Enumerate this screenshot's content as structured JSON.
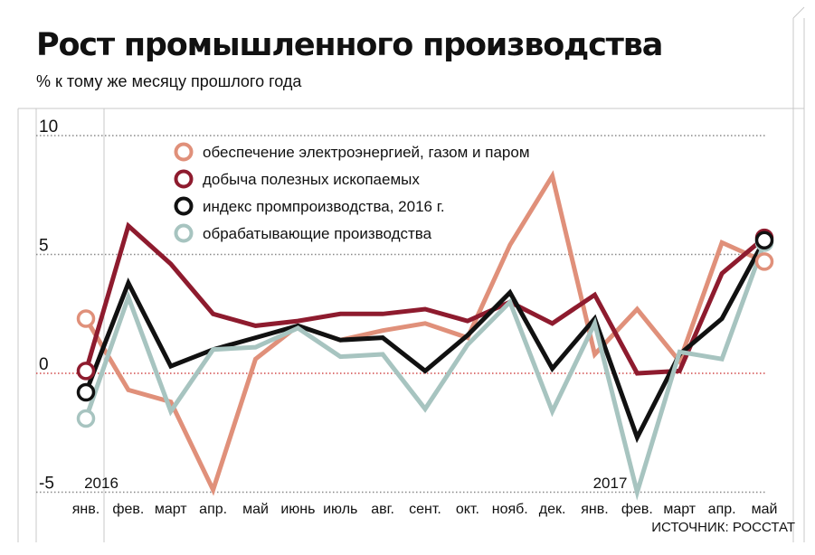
{
  "chart_data": {
    "type": "line",
    "title": "Рост промышленного производства",
    "subtitle": "% к тому же месяцу прошлого года",
    "source": "ИСТОЧНИК: РОССТАТ",
    "categories": [
      "янв.",
      "фев.",
      "март",
      "апр.",
      "май",
      "июнь",
      "июль",
      "авг.",
      "сент.",
      "окт.",
      "нояб.",
      "дек.",
      "янв.",
      "фев.",
      "март",
      "апр.",
      "май"
    ],
    "year_labels": [
      {
        "label": "2016",
        "index": 0
      },
      {
        "label": "2017",
        "index": 12
      }
    ],
    "yticks": [
      10,
      5,
      0,
      -5
    ],
    "yticks_labels": [
      "10",
      "5",
      "0",
      "-5"
    ],
    "ylim": [
      -5,
      10
    ],
    "legend_position": "top-center",
    "series": [
      {
        "name": "обеспечение электроэнергией, газом и паром",
        "color": "#e0907a",
        "width": 5,
        "marker": true,
        "values": [
          2.3,
          -0.7,
          -1.2,
          -4.9,
          0.6,
          2.0,
          1.4,
          1.8,
          2.1,
          1.5,
          5.4,
          8.3,
          0.8,
          2.7,
          0.5,
          5.5,
          4.7
        ]
      },
      {
        "name": "добыча полезных ископаемых",
        "color": "#8e1b2e",
        "width": 5,
        "marker": true,
        "values": [
          0.1,
          6.2,
          4.6,
          2.5,
          2.0,
          2.2,
          2.5,
          2.5,
          2.7,
          2.2,
          3.0,
          2.1,
          3.3,
          0.0,
          0.1,
          4.2,
          5.7
        ]
      },
      {
        "name": "индекс промпроизводства, 2016 г.",
        "color": "#111111",
        "width": 5,
        "marker": true,
        "values": [
          -0.8,
          3.8,
          0.3,
          1.0,
          1.5,
          2.0,
          1.4,
          1.5,
          0.1,
          1.6,
          3.4,
          0.2,
          2.3,
          -2.7,
          0.8,
          2.3,
          5.6
        ]
      },
      {
        "name": "обрабатывающие производства",
        "color": "#a7c4c0",
        "width": 5,
        "marker": true,
        "values": [
          -1.9,
          3.2,
          -1.6,
          1.0,
          1.1,
          1.9,
          0.7,
          0.8,
          -1.5,
          1.2,
          3.0,
          -1.6,
          2.1,
          -5.0,
          0.9,
          0.6,
          5.5
        ]
      }
    ],
    "reference_line": {
      "value": 0,
      "color": "#d24a4a",
      "style": "dotted"
    },
    "grid": {
      "horizontal": true,
      "style": "dotted",
      "color": "#888888"
    }
  }
}
